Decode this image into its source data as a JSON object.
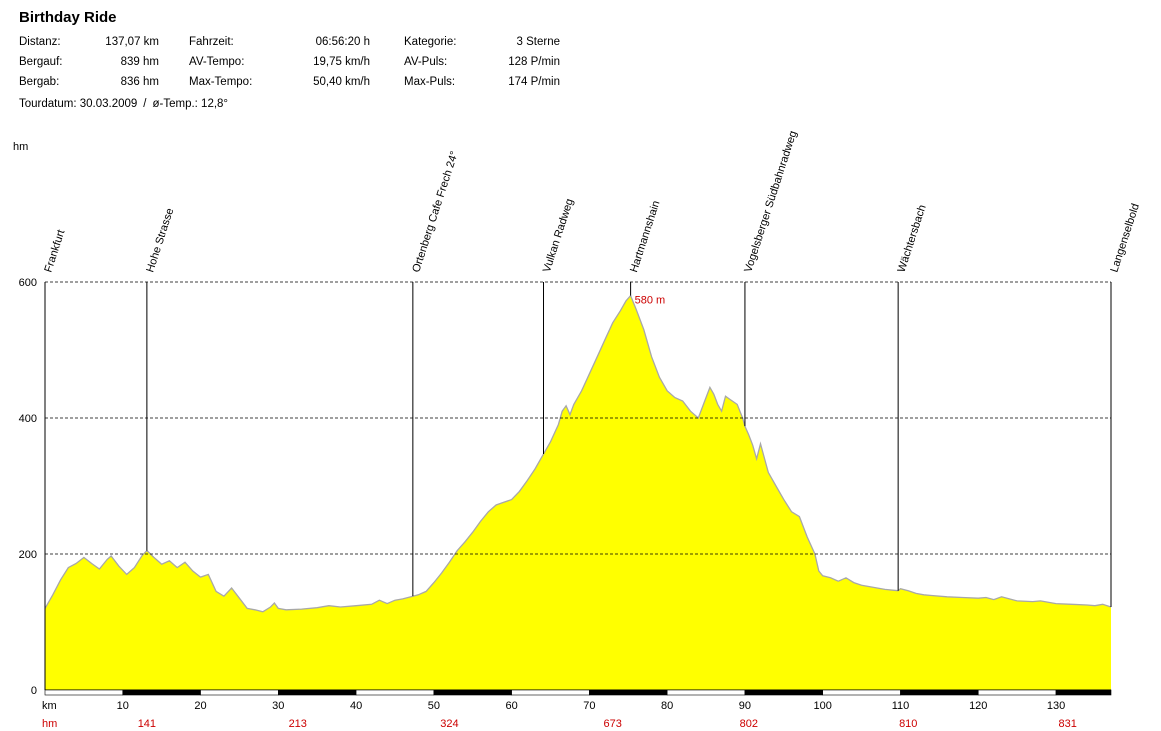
{
  "title": "Birthday Ride",
  "stats": {
    "col1": [
      {
        "label": "Distanz:",
        "value": "137,07 km"
      },
      {
        "label": "Bergauf:",
        "value": "839 hm"
      },
      {
        "label": "Bergab:",
        "value": "836 hm"
      }
    ],
    "col2": [
      {
        "label": "Fahrzeit:",
        "value": "06:56:20 h"
      },
      {
        "label": "AV-Tempo:",
        "value": "19,75 km/h"
      },
      {
        "label": "Max-Tempo:",
        "value": "50,40 km/h"
      }
    ],
    "col3": [
      {
        "label": "Kategorie:",
        "value": "3 Sterne"
      },
      {
        "label": "AV-Puls:",
        "value": "128 P/min"
      },
      {
        "label": "Max-Puls:",
        "value": "174 P/min"
      }
    ]
  },
  "tour": {
    "date_text": "Tourdatum: 30.03.2009",
    "separator": "/",
    "temp_text": "ø-Temp.: 12,8°"
  },
  "colors": {
    "fill": "#ffff00",
    "outline": "#a8a8a8",
    "accent_red": "#cc0000",
    "axis": "#000000",
    "grid": "#000000"
  },
  "chart_data": {
    "type": "area",
    "ylabel": "hm",
    "xlabel": "km",
    "xlim": [
      0,
      137.07
    ],
    "ylim": [
      0,
      600
    ],
    "y_ticks": [
      0,
      200,
      400,
      600
    ],
    "x_ticks": [
      10,
      20,
      30,
      40,
      50,
      60,
      70,
      80,
      90,
      100,
      110,
      120,
      130
    ],
    "grid": "dashed horizontal",
    "max_label": "580 m",
    "max_point": {
      "x": 75.3,
      "y": 580
    },
    "waypoints": [
      {
        "name": "Frankfurt",
        "km": 0
      },
      {
        "name": "Hohe Strasse",
        "km": 13.1
      },
      {
        "name": "Ortenberg Cafe Frech 24°",
        "km": 47.3
      },
      {
        "name": "Vulkan Radweg",
        "km": 64.1
      },
      {
        "name": "Hartmannshain",
        "km": 75.3
      },
      {
        "name": "Vogelsberger Südbahnradweg",
        "km": 90.0
      },
      {
        "name": "Wächtersbach",
        "km": 109.7
      },
      {
        "name": "Langenselbold",
        "km": 137.07
      }
    ],
    "cumulative_hm": [
      {
        "km": 13.1,
        "value": "141"
      },
      {
        "km": 32.5,
        "value": "213"
      },
      {
        "km": 52.0,
        "value": "324"
      },
      {
        "km": 73.0,
        "value": "673"
      },
      {
        "km": 90.5,
        "value": "802"
      },
      {
        "km": 111.0,
        "value": "810"
      },
      {
        "km": 131.5,
        "value": "831"
      }
    ],
    "hm_row_label": "hm",
    "profile": [
      [
        0,
        120
      ],
      [
        1,
        140
      ],
      [
        2,
        162
      ],
      [
        3,
        180
      ],
      [
        4,
        186
      ],
      [
        5,
        195
      ],
      [
        6,
        186
      ],
      [
        7,
        178
      ],
      [
        8,
        192
      ],
      [
        8.5,
        197
      ],
      [
        9.5,
        182
      ],
      [
        10.5,
        170
      ],
      [
        11.5,
        180
      ],
      [
        12.5,
        198
      ],
      [
        13.1,
        205
      ],
      [
        14,
        195
      ],
      [
        15,
        185
      ],
      [
        16,
        190
      ],
      [
        17,
        180
      ],
      [
        18,
        188
      ],
      [
        19,
        175
      ],
      [
        20,
        166
      ],
      [
        21,
        170
      ],
      [
        22,
        145
      ],
      [
        23,
        138
      ],
      [
        24,
        150
      ],
      [
        25,
        135
      ],
      [
        26,
        120
      ],
      [
        27,
        118
      ],
      [
        28,
        115
      ],
      [
        29,
        122
      ],
      [
        29.5,
        128
      ],
      [
        30,
        120
      ],
      [
        31,
        118
      ],
      [
        33,
        119
      ],
      [
        35,
        121
      ],
      [
        36.5,
        124
      ],
      [
        38,
        122
      ],
      [
        40,
        124
      ],
      [
        42,
        126
      ],
      [
        43,
        132
      ],
      [
        44,
        127
      ],
      [
        45,
        132
      ],
      [
        46,
        134
      ],
      [
        47.3,
        138
      ],
      [
        48,
        140
      ],
      [
        49,
        145
      ],
      [
        50,
        158
      ],
      [
        51,
        172
      ],
      [
        52,
        188
      ],
      [
        53,
        205
      ],
      [
        54,
        218
      ],
      [
        55,
        232
      ],
      [
        56,
        248
      ],
      [
        57,
        262
      ],
      [
        58,
        272
      ],
      [
        59,
        276
      ],
      [
        60,
        280
      ],
      [
        61,
        292
      ],
      [
        62,
        308
      ],
      [
        63,
        325
      ],
      [
        64,
        345
      ],
      [
        65,
        365
      ],
      [
        66,
        390
      ],
      [
        66.5,
        410
      ],
      [
        67,
        418
      ],
      [
        67.5,
        405
      ],
      [
        68,
        420
      ],
      [
        69,
        440
      ],
      [
        70,
        465
      ],
      [
        71,
        490
      ],
      [
        72,
        515
      ],
      [
        73,
        540
      ],
      [
        74,
        558
      ],
      [
        74.7,
        572
      ],
      [
        75.3,
        580
      ],
      [
        76,
        560
      ],
      [
        77,
        530
      ],
      [
        78,
        490
      ],
      [
        79,
        460
      ],
      [
        80,
        440
      ],
      [
        81,
        430
      ],
      [
        82,
        425
      ],
      [
        83,
        410
      ],
      [
        84,
        400
      ],
      [
        85,
        430
      ],
      [
        85.5,
        445
      ],
      [
        86,
        435
      ],
      [
        86.5,
        420
      ],
      [
        87,
        410
      ],
      [
        87.5,
        432
      ],
      [
        88,
        428
      ],
      [
        89,
        420
      ],
      [
        89.7,
        400
      ],
      [
        90,
        388
      ],
      [
        90.5,
        375
      ],
      [
        91,
        360
      ],
      [
        91.5,
        340
      ],
      [
        92,
        362
      ],
      [
        93,
        320
      ],
      [
        94,
        300
      ],
      [
        95,
        280
      ],
      [
        96,
        262
      ],
      [
        97,
        255
      ],
      [
        98,
        225
      ],
      [
        99,
        200
      ],
      [
        99.5,
        175
      ],
      [
        100,
        168
      ],
      [
        101,
        165
      ],
      [
        102,
        160
      ],
      [
        103,
        165
      ],
      [
        104,
        158
      ],
      [
        105,
        154
      ],
      [
        106,
        152
      ],
      [
        108,
        148
      ],
      [
        109.7,
        146
      ],
      [
        110,
        149
      ],
      [
        111,
        146
      ],
      [
        112,
        142
      ],
      [
        113,
        140
      ],
      [
        114,
        139
      ],
      [
        116,
        137
      ],
      [
        118,
        136
      ],
      [
        120,
        135
      ],
      [
        121,
        136
      ],
      [
        122,
        133
      ],
      [
        123,
        137
      ],
      [
        124,
        134
      ],
      [
        125,
        131
      ],
      [
        127,
        130
      ],
      [
        128,
        131
      ],
      [
        130,
        127
      ],
      [
        132,
        126
      ],
      [
        134,
        125
      ],
      [
        135,
        124
      ],
      [
        136,
        126
      ],
      [
        137.07,
        122
      ]
    ]
  }
}
